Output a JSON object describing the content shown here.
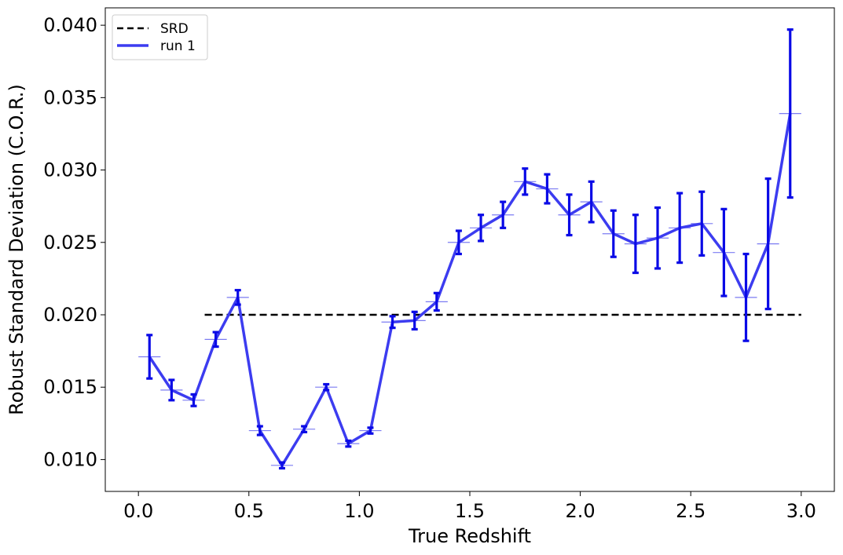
{
  "chart_data": {
    "type": "line",
    "title": "",
    "xlabel": "True Redshift",
    "ylabel": "Robust Standard Deviation (C.O.R.)",
    "xlim": [
      -0.15,
      3.15
    ],
    "ylim": [
      0.0078,
      0.0412
    ],
    "xticks": [
      0.0,
      0.5,
      1.0,
      1.5,
      2.0,
      2.5,
      3.0
    ],
    "xtick_labels": [
      "0.0",
      "0.5",
      "1.0",
      "1.5",
      "2.0",
      "2.5",
      "3.0"
    ],
    "yticks": [
      0.01,
      0.015,
      0.02,
      0.025,
      0.03,
      0.035,
      0.04
    ],
    "ytick_labels": [
      "0.010",
      "0.015",
      "0.020",
      "0.025",
      "0.030",
      "0.035",
      "0.040"
    ],
    "grid": false,
    "legend_position": "top-left",
    "legend": [
      {
        "label": "SRD",
        "style": "dashed",
        "color": "#000000"
      },
      {
        "label": "run 1",
        "style": "solid",
        "color": "#3c3cf0"
      }
    ],
    "srd": {
      "name": "SRD",
      "x": [
        0.3,
        3.0
      ],
      "y": [
        0.02,
        0.02
      ],
      "color": "#000000"
    },
    "series": [
      {
        "name": "run 1",
        "color": "#3c3cf0",
        "errorbar_color": "#0a0ae6",
        "x": [
          0.05,
          0.15,
          0.25,
          0.35,
          0.45,
          0.55,
          0.65,
          0.75,
          0.85,
          0.95,
          1.05,
          1.15,
          1.25,
          1.35,
          1.45,
          1.55,
          1.65,
          1.75,
          1.85,
          1.95,
          2.05,
          2.15,
          2.25,
          2.35,
          2.45,
          2.55,
          2.65,
          2.75,
          2.85,
          2.95
        ],
        "y": [
          0.0171,
          0.0148,
          0.0141,
          0.0183,
          0.0212,
          0.012,
          0.0096,
          0.0121,
          0.015,
          0.0111,
          0.012,
          0.0195,
          0.0196,
          0.0209,
          0.025,
          0.026,
          0.0269,
          0.0292,
          0.0287,
          0.0269,
          0.0278,
          0.0256,
          0.0249,
          0.0253,
          0.026,
          0.0263,
          0.0243,
          0.0212,
          0.0249,
          0.0339
        ],
        "yerr": [
          0.0015,
          0.0007,
          0.0004,
          0.0005,
          0.0005,
          0.0003,
          0.0002,
          0.0002,
          0.0002,
          0.0002,
          0.0002,
          0.0004,
          0.0006,
          0.0006,
          0.0008,
          0.0009,
          0.0009,
          0.0009,
          0.001,
          0.0014,
          0.0014,
          0.0016,
          0.002,
          0.0021,
          0.0024,
          0.0022,
          0.003,
          0.003,
          0.0045,
          0.0058
        ],
        "xerr": 0.05
      }
    ]
  }
}
